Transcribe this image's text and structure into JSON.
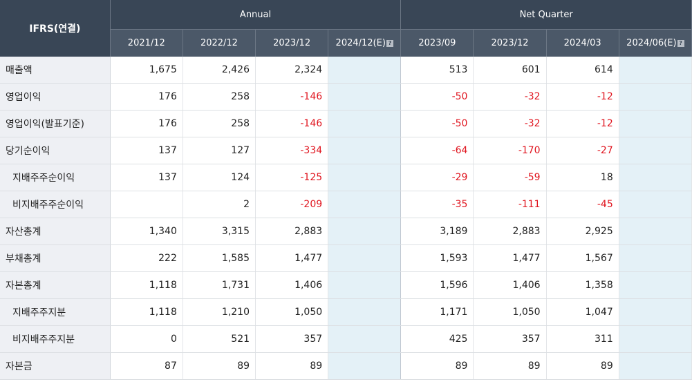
{
  "header": {
    "corner_label": "IFRS(연결)",
    "group_annual": "Annual",
    "group_quarter": "Net Quarter",
    "annual_periods": [
      "2021/12",
      "2022/12",
      "2023/12",
      "2024/12(E)"
    ],
    "quarter_periods": [
      "2023/09",
      "2023/12",
      "2024/03",
      "2024/06(E)"
    ],
    "estimate_icon": "question-mark-icon"
  },
  "colors": {
    "header_bg": "#394656",
    "subheader_bg": "#4b5868",
    "label_bg": "#eef0f4",
    "estimate_bg": "#e4f1f7",
    "negative": "#e0141e"
  },
  "rows": [
    {
      "label": "매출액",
      "indent": false,
      "annual": [
        "1,675",
        "2,426",
        "2,324",
        ""
      ],
      "quarter": [
        "513",
        "601",
        "614",
        ""
      ]
    },
    {
      "label": "영업이익",
      "indent": false,
      "annual": [
        "176",
        "258",
        "-146",
        ""
      ],
      "quarter": [
        "-50",
        "-32",
        "-12",
        ""
      ]
    },
    {
      "label": "영업이익(발표기준)",
      "indent": false,
      "annual": [
        "176",
        "258",
        "-146",
        ""
      ],
      "quarter": [
        "-50",
        "-32",
        "-12",
        ""
      ]
    },
    {
      "label": "당기순이익",
      "indent": false,
      "annual": [
        "137",
        "127",
        "-334",
        ""
      ],
      "quarter": [
        "-64",
        "-170",
        "-27",
        ""
      ]
    },
    {
      "label": "지배주주순이익",
      "indent": true,
      "annual": [
        "137",
        "124",
        "-125",
        ""
      ],
      "quarter": [
        "-29",
        "-59",
        "18",
        ""
      ]
    },
    {
      "label": "비지배주주순이익",
      "indent": true,
      "annual": [
        "",
        "2",
        "-209",
        ""
      ],
      "quarter": [
        "-35",
        "-111",
        "-45",
        ""
      ]
    },
    {
      "label": "자산총계",
      "indent": false,
      "annual": [
        "1,340",
        "3,315",
        "2,883",
        ""
      ],
      "quarter": [
        "3,189",
        "2,883",
        "2,925",
        ""
      ]
    },
    {
      "label": "부채총계",
      "indent": false,
      "annual": [
        "222",
        "1,585",
        "1,477",
        ""
      ],
      "quarter": [
        "1,593",
        "1,477",
        "1,567",
        ""
      ]
    },
    {
      "label": "자본총계",
      "indent": false,
      "annual": [
        "1,118",
        "1,731",
        "1,406",
        ""
      ],
      "quarter": [
        "1,596",
        "1,406",
        "1,358",
        ""
      ]
    },
    {
      "label": "지배주주지분",
      "indent": true,
      "annual": [
        "1,118",
        "1,210",
        "1,050",
        ""
      ],
      "quarter": [
        "1,171",
        "1,050",
        "1,047",
        ""
      ]
    },
    {
      "label": "비지배주주지분",
      "indent": true,
      "annual": [
        "0",
        "521",
        "357",
        ""
      ],
      "quarter": [
        "425",
        "357",
        "311",
        ""
      ]
    },
    {
      "label": "자본금",
      "indent": false,
      "annual": [
        "87",
        "89",
        "89",
        ""
      ],
      "quarter": [
        "89",
        "89",
        "89",
        ""
      ]
    }
  ]
}
